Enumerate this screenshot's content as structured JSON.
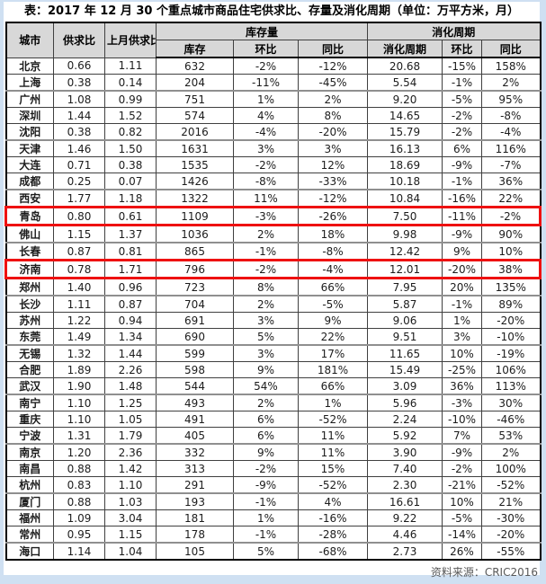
{
  "chart_data": {
    "type": "table",
    "title": "表：2017 年 12 月 30 个重点城市商品住宅供求比、存量及消化周期（单位：万平方米，月）",
    "source": "资料来源：CRIC2016",
    "headers": {
      "city": "城市",
      "ratio": "供求比",
      "prev_ratio": "上月供求比",
      "inventory_group": "库存量",
      "inventory": "库存",
      "inv_mom": "环比",
      "inv_yoy": "同比",
      "digestion_group": "消化周期",
      "digestion": "消化周期",
      "dig_mom": "环比",
      "dig_yoy": "同比"
    },
    "highlighted_rows": [
      "青岛",
      "济南"
    ],
    "rows": [
      {
        "city": "北京",
        "ratio": "0.66",
        "prev_ratio": "1.11",
        "inventory": "632",
        "inv_mom": "-2%",
        "inv_yoy": "-12%",
        "digestion": "20.68",
        "dig_mom": "-15%",
        "dig_yoy": "158%",
        "highlight": false
      },
      {
        "city": "上海",
        "ratio": "0.38",
        "prev_ratio": "0.14",
        "inventory": "204",
        "inv_mom": "-11%",
        "inv_yoy": "-45%",
        "digestion": "5.54",
        "dig_mom": "-1%",
        "dig_yoy": "2%",
        "highlight": false
      },
      {
        "city": "广州",
        "ratio": "1.08",
        "prev_ratio": "0.99",
        "inventory": "751",
        "inv_mom": "1%",
        "inv_yoy": "2%",
        "digestion": "9.20",
        "dig_mom": "-5%",
        "dig_yoy": "95%",
        "highlight": false
      },
      {
        "city": "深圳",
        "ratio": "1.44",
        "prev_ratio": "1.52",
        "inventory": "574",
        "inv_mom": "4%",
        "inv_yoy": "8%",
        "digestion": "14.65",
        "dig_mom": "-2%",
        "dig_yoy": "-8%",
        "highlight": false
      },
      {
        "city": "沈阳",
        "ratio": "0.38",
        "prev_ratio": "0.82",
        "inventory": "2016",
        "inv_mom": "-4%",
        "inv_yoy": "-20%",
        "digestion": "15.79",
        "dig_mom": "-2%",
        "dig_yoy": "-4%",
        "highlight": false
      },
      {
        "city": "天津",
        "ratio": "1.46",
        "prev_ratio": "1.50",
        "inventory": "1631",
        "inv_mom": "3%",
        "inv_yoy": "3%",
        "digestion": "16.13",
        "dig_mom": "6%",
        "dig_yoy": "116%",
        "highlight": false
      },
      {
        "city": "大连",
        "ratio": "0.71",
        "prev_ratio": "0.38",
        "inventory": "1535",
        "inv_mom": "-2%",
        "inv_yoy": "12%",
        "digestion": "18.69",
        "dig_mom": "-9%",
        "dig_yoy": "-7%",
        "highlight": false
      },
      {
        "city": "成都",
        "ratio": "0.25",
        "prev_ratio": "0.07",
        "inventory": "1426",
        "inv_mom": "-8%",
        "inv_yoy": "-33%",
        "digestion": "10.18",
        "dig_mom": "-1%",
        "dig_yoy": "36%",
        "highlight": false
      },
      {
        "city": "西安",
        "ratio": "1.77",
        "prev_ratio": "1.18",
        "inventory": "1322",
        "inv_mom": "11%",
        "inv_yoy": "-12%",
        "digestion": "10.84",
        "dig_mom": "-16%",
        "dig_yoy": "22%",
        "highlight": false
      },
      {
        "city": "青岛",
        "ratio": "0.80",
        "prev_ratio": "0.61",
        "inventory": "1109",
        "inv_mom": "-3%",
        "inv_yoy": "-26%",
        "digestion": "7.50",
        "dig_mom": "-11%",
        "dig_yoy": "-2%",
        "highlight": true
      },
      {
        "city": "佛山",
        "ratio": "1.15",
        "prev_ratio": "1.37",
        "inventory": "1036",
        "inv_mom": "2%",
        "inv_yoy": "18%",
        "digestion": "9.98",
        "dig_mom": "-9%",
        "dig_yoy": "90%",
        "highlight": false
      },
      {
        "city": "长春",
        "ratio": "0.87",
        "prev_ratio": "0.81",
        "inventory": "865",
        "inv_mom": "-1%",
        "inv_yoy": "-8%",
        "digestion": "12.42",
        "dig_mom": "9%",
        "dig_yoy": "10%",
        "highlight": false
      },
      {
        "city": "济南",
        "ratio": "0.78",
        "prev_ratio": "1.71",
        "inventory": "796",
        "inv_mom": "-2%",
        "inv_yoy": "-4%",
        "digestion": "12.01",
        "dig_mom": "-20%",
        "dig_yoy": "38%",
        "highlight": true
      },
      {
        "city": "郑州",
        "ratio": "1.40",
        "prev_ratio": "0.96",
        "inventory": "723",
        "inv_mom": "8%",
        "inv_yoy": "66%",
        "digestion": "7.95",
        "dig_mom": "20%",
        "dig_yoy": "135%",
        "highlight": false
      },
      {
        "city": "长沙",
        "ratio": "1.11",
        "prev_ratio": "0.87",
        "inventory": "704",
        "inv_mom": "2%",
        "inv_yoy": "-5%",
        "digestion": "5.87",
        "dig_mom": "-1%",
        "dig_yoy": "89%",
        "highlight": false
      },
      {
        "city": "苏州",
        "ratio": "1.22",
        "prev_ratio": "0.94",
        "inventory": "691",
        "inv_mom": "3%",
        "inv_yoy": "9%",
        "digestion": "9.06",
        "dig_mom": "1%",
        "dig_yoy": "-20%",
        "highlight": false
      },
      {
        "city": "东莞",
        "ratio": "1.49",
        "prev_ratio": "1.34",
        "inventory": "690",
        "inv_mom": "5%",
        "inv_yoy": "22%",
        "digestion": "9.51",
        "dig_mom": "3%",
        "dig_yoy": "-10%",
        "highlight": false
      },
      {
        "city": "无锡",
        "ratio": "1.32",
        "prev_ratio": "1.44",
        "inventory": "599",
        "inv_mom": "3%",
        "inv_yoy": "17%",
        "digestion": "11.65",
        "dig_mom": "10%",
        "dig_yoy": "-19%",
        "highlight": false
      },
      {
        "city": "合肥",
        "ratio": "1.89",
        "prev_ratio": "2.26",
        "inventory": "598",
        "inv_mom": "9%",
        "inv_yoy": "181%",
        "digestion": "15.49",
        "dig_mom": "-25%",
        "dig_yoy": "106%",
        "highlight": false
      },
      {
        "city": "武汉",
        "ratio": "1.90",
        "prev_ratio": "1.48",
        "inventory": "544",
        "inv_mom": "54%",
        "inv_yoy": "66%",
        "digestion": "3.09",
        "dig_mom": "36%",
        "dig_yoy": "113%",
        "highlight": false
      },
      {
        "city": "南宁",
        "ratio": "1.10",
        "prev_ratio": "1.25",
        "inventory": "493",
        "inv_mom": "2%",
        "inv_yoy": "1%",
        "digestion": "5.96",
        "dig_mom": "-3%",
        "dig_yoy": "30%",
        "highlight": false
      },
      {
        "city": "重庆",
        "ratio": "1.10",
        "prev_ratio": "1.05",
        "inventory": "491",
        "inv_mom": "6%",
        "inv_yoy": "-52%",
        "digestion": "2.24",
        "dig_mom": "-10%",
        "dig_yoy": "-46%",
        "highlight": false
      },
      {
        "city": "宁波",
        "ratio": "1.31",
        "prev_ratio": "1.79",
        "inventory": "405",
        "inv_mom": "6%",
        "inv_yoy": "11%",
        "digestion": "5.92",
        "dig_mom": "7%",
        "dig_yoy": "53%",
        "highlight": false
      },
      {
        "city": "南京",
        "ratio": "1.20",
        "prev_ratio": "2.36",
        "inventory": "332",
        "inv_mom": "9%",
        "inv_yoy": "11%",
        "digestion": "3.90",
        "dig_mom": "-9%",
        "dig_yoy": "2%",
        "highlight": false
      },
      {
        "city": "南昌",
        "ratio": "0.88",
        "prev_ratio": "1.42",
        "inventory": "313",
        "inv_mom": "-2%",
        "inv_yoy": "15%",
        "digestion": "7.40",
        "dig_mom": "-2%",
        "dig_yoy": "100%",
        "highlight": false
      },
      {
        "city": "杭州",
        "ratio": "0.83",
        "prev_ratio": "1.10",
        "inventory": "291",
        "inv_mom": "-9%",
        "inv_yoy": "-52%",
        "digestion": "2.30",
        "dig_mom": "-21%",
        "dig_yoy": "-52%",
        "highlight": false
      },
      {
        "city": "厦门",
        "ratio": "0.88",
        "prev_ratio": "1.03",
        "inventory": "193",
        "inv_mom": "-1%",
        "inv_yoy": "4%",
        "digestion": "16.61",
        "dig_mom": "10%",
        "dig_yoy": "21%",
        "highlight": false
      },
      {
        "city": "福州",
        "ratio": "1.09",
        "prev_ratio": "3.04",
        "inventory": "181",
        "inv_mom": "1%",
        "inv_yoy": "-16%",
        "digestion": "9.22",
        "dig_mom": "-5%",
        "dig_yoy": "-30%",
        "highlight": false
      },
      {
        "city": "常州",
        "ratio": "0.95",
        "prev_ratio": "1.15",
        "inventory": "178",
        "inv_mom": "-1%",
        "inv_yoy": "-28%",
        "digestion": "4.46",
        "dig_mom": "-14%",
        "dig_yoy": "-20%",
        "highlight": false
      },
      {
        "city": "海口",
        "ratio": "1.14",
        "prev_ratio": "1.04",
        "inventory": "105",
        "inv_mom": "5%",
        "inv_yoy": "-68%",
        "digestion": "2.73",
        "dig_mom": "26%",
        "dig_yoy": "-55%",
        "highlight": false
      }
    ],
    "layout": {
      "grid": "full-borders",
      "header_background": "#d8d8d8",
      "highlight_color": "#ee1111",
      "frame_color": "#cfe0f2",
      "source_text_color": "#595959"
    }
  }
}
